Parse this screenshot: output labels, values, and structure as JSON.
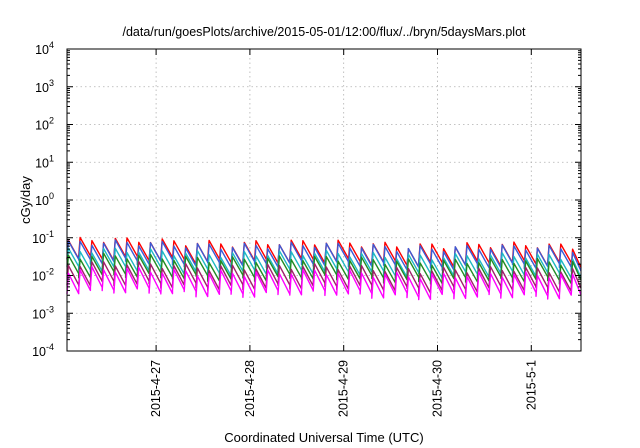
{
  "chart_data": {
    "type": "line",
    "title": "/data/run/goesPlots/archive/2015-05-01/12:00/flux/../bryn/5daysMars.plot",
    "xlabel": "Coordinated Universal Time (UTC)",
    "ylabel": "cGy/day",
    "yscale": "log",
    "ylim_exponents": [
      -4,
      4
    ],
    "y_tick_base": "10",
    "y_tick_exponents": [
      "4",
      "3",
      "2",
      "1",
      "0",
      "-1",
      "-2",
      "-3",
      "-4"
    ],
    "xlim_days": [
      0,
      5.48
    ],
    "x_ticks": [
      {
        "label": "2015-4-27",
        "day": 0.95
      },
      {
        "label": "2015-4-28",
        "day": 1.95
      },
      {
        "label": "2015-4-29",
        "day": 2.95
      },
      {
        "label": "2015-4-30",
        "day": 3.95
      },
      {
        "label": "2015-5-1",
        "day": 4.95
      }
    ],
    "grid": true,
    "legend": "none",
    "sawtooth_period_days": 0.125,
    "series": [
      {
        "color": "#ff0000",
        "peak_start": 0.085,
        "peak_end": 0.058,
        "trough_ratio": 0.32
      },
      {
        "color": "#3b5bd6",
        "peak_start": 0.072,
        "peak_end": 0.05,
        "trough_ratio": 0.32
      },
      {
        "color": "#1fb8c4",
        "peak_start": 0.045,
        "peak_end": 0.03,
        "trough_ratio": 0.32
      },
      {
        "color": "#228b22",
        "peak_start": 0.032,
        "peak_end": 0.022,
        "trough_ratio": 0.32
      },
      {
        "color": "#a0206a",
        "peak_start": 0.02,
        "peak_end": 0.013,
        "trough_ratio": 0.3
      },
      {
        "color": "#ff00ff",
        "peak_start": 0.014,
        "peak_end": 0.0095,
        "trough_ratio": 0.28
      }
    ]
  }
}
